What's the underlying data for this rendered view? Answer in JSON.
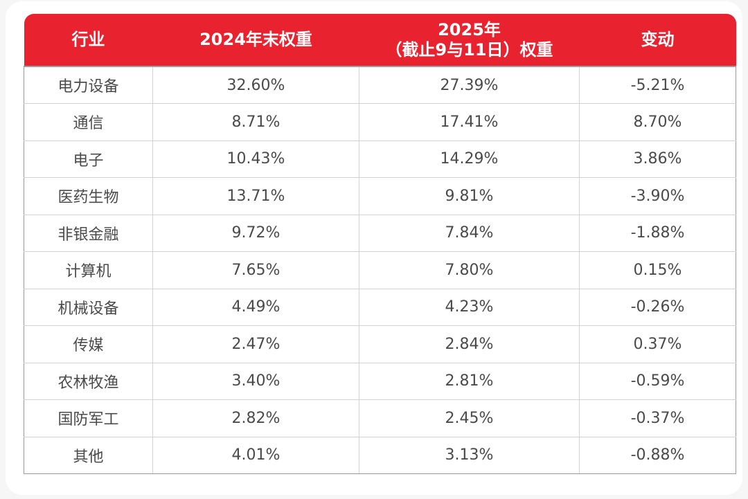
{
  "chart_data": {
    "type": "table",
    "header": {
      "industry": "行业",
      "weight_2024": "2024年末权重",
      "weight_2025_line1": "2025年",
      "weight_2025_line2": "（截止9与11日）权重",
      "change": "变动"
    },
    "rows": [
      {
        "industry": "电力设备",
        "weight_2024": "32.60%",
        "weight_2025": "27.39%",
        "change": "-5.21%"
      },
      {
        "industry": "通信",
        "weight_2024": "8.71%",
        "weight_2025": "17.41%",
        "change": "8.70%"
      },
      {
        "industry": "电子",
        "weight_2024": "10.43%",
        "weight_2025": "14.29%",
        "change": "3.86%"
      },
      {
        "industry": "医药生物",
        "weight_2024": "13.71%",
        "weight_2025": "9.81%",
        "change": "-3.90%"
      },
      {
        "industry": "非银金融",
        "weight_2024": "9.72%",
        "weight_2025": "7.84%",
        "change": "-1.88%"
      },
      {
        "industry": "计算机",
        "weight_2024": "7.65%",
        "weight_2025": "7.80%",
        "change": "0.15%"
      },
      {
        "industry": "机械设备",
        "weight_2024": "4.49%",
        "weight_2025": "4.23%",
        "change": "-0.26%"
      },
      {
        "industry": "传媒",
        "weight_2024": "2.47%",
        "weight_2025": "2.84%",
        "change": "0.37%"
      },
      {
        "industry": "农林牧渔",
        "weight_2024": "3.40%",
        "weight_2025": "2.81%",
        "change": "-0.59%"
      },
      {
        "industry": "国防军工",
        "weight_2024": "2.82%",
        "weight_2025": "2.45%",
        "change": "-0.37%"
      },
      {
        "industry": "其他",
        "weight_2024": "4.01%",
        "weight_2025": "3.13%",
        "change": "-0.88%"
      }
    ]
  },
  "colors": {
    "header_bg": "#e8232f",
    "header_text": "#ffffff",
    "cell_text": "#4a4a4a",
    "grid": "#d2d2d2"
  }
}
